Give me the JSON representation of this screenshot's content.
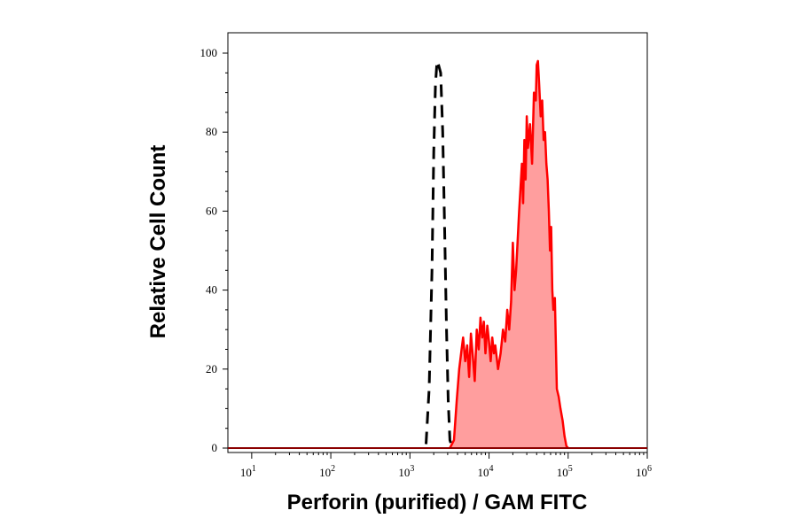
{
  "chart_data": {
    "type": "area",
    "xlabel": "Perforin (purified) / GAM FITC",
    "ylabel": "Relative Cell Count",
    "x_scale": "log",
    "xlim": [
      5,
      1000000
    ],
    "ylim": [
      0,
      100
    ],
    "x_ticks": [
      {
        "value": 10,
        "base": "10",
        "exp": "1"
      },
      {
        "value": 100,
        "base": "10",
        "exp": "2"
      },
      {
        "value": 1000,
        "base": "10",
        "exp": "3"
      },
      {
        "value": 10000,
        "base": "10",
        "exp": "4"
      },
      {
        "value": 100000,
        "base": "10",
        "exp": "5"
      },
      {
        "value": 1000000,
        "base": "10",
        "exp": "6"
      }
    ],
    "y_ticks": [
      {
        "value": 0,
        "label": "0"
      },
      {
        "value": 20,
        "label": "20"
      },
      {
        "value": 40,
        "label": "40"
      },
      {
        "value": 60,
        "label": "60"
      },
      {
        "value": 80,
        "label": "80"
      },
      {
        "value": 100,
        "label": "100"
      }
    ],
    "grid": false,
    "series": [
      {
        "style": "dashed",
        "color": "#000000",
        "fill": "none",
        "points": [
          [
            1600,
            1
          ],
          [
            1750,
            15
          ],
          [
            1900,
            45
          ],
          [
            2000,
            75
          ],
          [
            2100,
            92
          ],
          [
            2200,
            98
          ],
          [
            2300,
            97
          ],
          [
            2450,
            95
          ],
          [
            2600,
            80
          ],
          [
            2750,
            55
          ],
          [
            2900,
            30
          ],
          [
            3050,
            12
          ],
          [
            3200,
            2
          ],
          [
            3400,
            0.5
          ]
        ]
      },
      {
        "style": "solid",
        "color": "#ff0000",
        "fill": "#ff9e9e",
        "points": [
          [
            3200,
            0
          ],
          [
            3600,
            2
          ],
          [
            3900,
            12
          ],
          [
            4200,
            20
          ],
          [
            4500,
            25
          ],
          [
            4700,
            28
          ],
          [
            5000,
            22
          ],
          [
            5300,
            26
          ],
          [
            5600,
            18
          ],
          [
            5900,
            29
          ],
          [
            6200,
            24
          ],
          [
            6600,
            17
          ],
          [
            7000,
            30
          ],
          [
            7400,
            25
          ],
          [
            7800,
            33
          ],
          [
            8200,
            28
          ],
          [
            8600,
            32
          ],
          [
            9000,
            24
          ],
          [
            9500,
            31
          ],
          [
            10000,
            27
          ],
          [
            10500,
            22
          ],
          [
            11000,
            28
          ],
          [
            11500,
            24
          ],
          [
            12000,
            26
          ],
          [
            13000,
            20
          ],
          [
            14000,
            24
          ],
          [
            15000,
            30
          ],
          [
            16000,
            27
          ],
          [
            17000,
            35
          ],
          [
            18000,
            30
          ],
          [
            19000,
            37
          ],
          [
            20000,
            52
          ],
          [
            21000,
            40
          ],
          [
            22000,
            45
          ],
          [
            24000,
            60
          ],
          [
            26000,
            72
          ],
          [
            27000,
            62
          ],
          [
            28000,
            78
          ],
          [
            29000,
            68
          ],
          [
            30000,
            84
          ],
          [
            31000,
            76
          ],
          [
            33000,
            82
          ],
          [
            35000,
            72
          ],
          [
            37000,
            90
          ],
          [
            39000,
            88
          ],
          [
            40000,
            97
          ],
          [
            41500,
            98
          ],
          [
            43000,
            92
          ],
          [
            45000,
            84
          ],
          [
            47000,
            88
          ],
          [
            49000,
            78
          ],
          [
            51000,
            80
          ],
          [
            53000,
            72
          ],
          [
            55000,
            68
          ],
          [
            57000,
            60
          ],
          [
            59000,
            50
          ],
          [
            61000,
            56
          ],
          [
            63000,
            40
          ],
          [
            65000,
            35
          ],
          [
            68000,
            38
          ],
          [
            72000,
            15
          ],
          [
            76000,
            13
          ],
          [
            80000,
            10
          ],
          [
            85000,
            7
          ],
          [
            90000,
            3
          ],
          [
            95000,
            0.5
          ],
          [
            100000,
            0
          ]
        ]
      }
    ]
  }
}
